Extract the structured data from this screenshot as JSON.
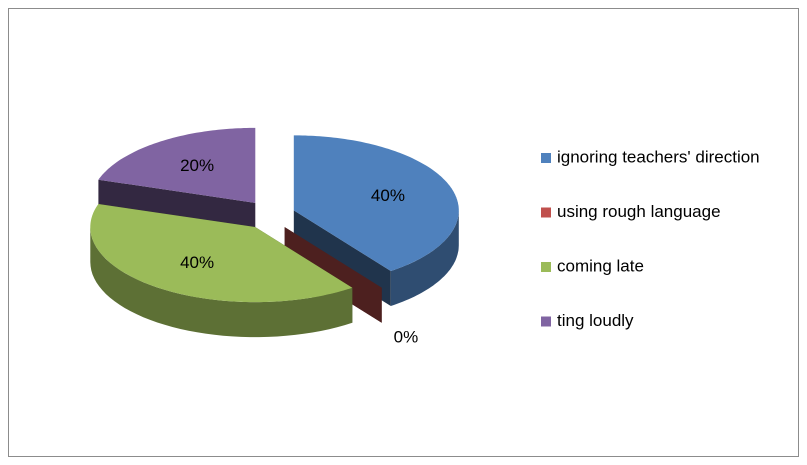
{
  "chart_data": {
    "type": "pie",
    "categories": [
      "ignoring teachers' direction",
      "using rough language",
      "coming late",
      "ting loudly"
    ],
    "values": [
      40,
      0,
      40,
      20
    ],
    "value_labels": [
      "40%",
      "0%",
      "40%",
      "20%"
    ],
    "colors": [
      "#4f81bd",
      "#c0504d",
      "#9bbb59",
      "#8064a2"
    ],
    "legend": "right"
  }
}
